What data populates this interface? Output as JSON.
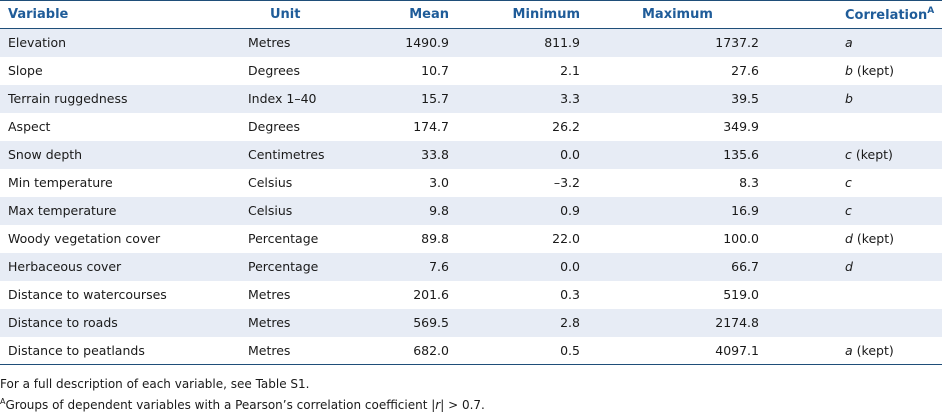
{
  "table": {
    "headers": {
      "variable": "Variable",
      "unit": "Unit",
      "mean": "Mean",
      "minimum": "Minimum",
      "maximum": "Maximum",
      "correlation": "Correlation",
      "correlation_mark": "A"
    },
    "rows": [
      {
        "variable": "Elevation",
        "unit": "Metres",
        "mean": "1490.9",
        "minimum": "811.9",
        "maximum": "1737.2",
        "corr_letter": "a",
        "corr_note": ""
      },
      {
        "variable": "Slope",
        "unit": "Degrees",
        "mean": "10.7",
        "minimum": "2.1",
        "maximum": "27.6",
        "corr_letter": "b",
        "corr_note": " (kept)"
      },
      {
        "variable": "Terrain ruggedness",
        "unit": "Index 1–40",
        "mean": "15.7",
        "minimum": "3.3",
        "maximum": "39.5",
        "corr_letter": "b",
        "corr_note": ""
      },
      {
        "variable": "Aspect",
        "unit": "Degrees",
        "mean": "174.7",
        "minimum": "26.2",
        "maximum": "349.9",
        "corr_letter": "",
        "corr_note": ""
      },
      {
        "variable": "Snow depth",
        "unit": "Centimetres",
        "mean": "33.8",
        "minimum": "0.0",
        "maximum": "135.6",
        "corr_letter": "c",
        "corr_note": " (kept)"
      },
      {
        "variable": "Min temperature",
        "unit": "Celsius",
        "mean": "3.0",
        "minimum": "–3.2",
        "maximum": "8.3",
        "corr_letter": "c",
        "corr_note": ""
      },
      {
        "variable": "Max temperature",
        "unit": "Celsius",
        "mean": "9.8",
        "minimum": "0.9",
        "maximum": "16.9",
        "corr_letter": "c",
        "corr_note": ""
      },
      {
        "variable": "Woody vegetation cover",
        "unit": "Percentage",
        "mean": "89.8",
        "minimum": "22.0",
        "maximum": "100.0",
        "corr_letter": "d",
        "corr_note": " (kept)"
      },
      {
        "variable": "Herbaceous cover",
        "unit": "Percentage",
        "mean": "7.6",
        "minimum": "0.0",
        "maximum": "66.7",
        "corr_letter": "d",
        "corr_note": ""
      },
      {
        "variable": "Distance to watercourses",
        "unit": "Metres",
        "mean": "201.6",
        "minimum": "0.3",
        "maximum": "519.0",
        "corr_letter": "",
        "corr_note": ""
      },
      {
        "variable": "Distance to roads",
        "unit": "Metres",
        "mean": "569.5",
        "minimum": "2.8",
        "maximum": "2174.8",
        "corr_letter": "",
        "corr_note": ""
      },
      {
        "variable": "Distance to peatlands",
        "unit": "Metres",
        "mean": "682.0",
        "minimum": "0.5",
        "maximum": "4097.1",
        "corr_letter": "a",
        "corr_note": " (kept)"
      }
    ]
  },
  "footnotes": {
    "note1": "For a full description of each variable, see Table S1.",
    "note2_mark": "A",
    "note2_text_before": "Groups of dependent variables with a Pearson’s correlation coefficient |",
    "note2_var": "r",
    "note2_text_after": "| > 0.7."
  },
  "colors": {
    "header_text": "#1f5c99",
    "rule": "#1f4e79",
    "band": "#e7ecf5"
  }
}
